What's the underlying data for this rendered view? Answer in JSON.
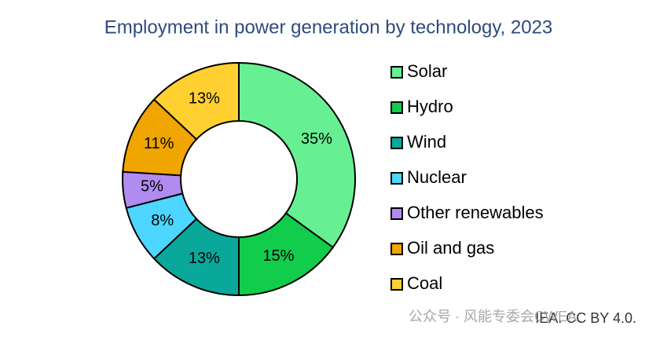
{
  "chart_data": {
    "type": "pie",
    "title": "Employment in power generation by technology, 2023",
    "categories": [
      "Solar",
      "Hydro",
      "Wind",
      "Nuclear",
      "Other renewables",
      "Oil and gas",
      "Coal"
    ],
    "values": [
      35,
      15,
      13,
      8,
      5,
      11,
      13
    ],
    "value_labels": [
      "35%",
      "15%",
      "13%",
      "8%",
      "5%",
      "11%",
      "13%"
    ],
    "colors": [
      "#66f093",
      "#12cc4c",
      "#0aa89a",
      "#4dd6ff",
      "#b18cf0",
      "#f0a500",
      "#ffd030"
    ],
    "legend": "right",
    "source": "IEA. CC BY 4.0.",
    "watermark": "公众号 · 风能专委会CWEA"
  }
}
